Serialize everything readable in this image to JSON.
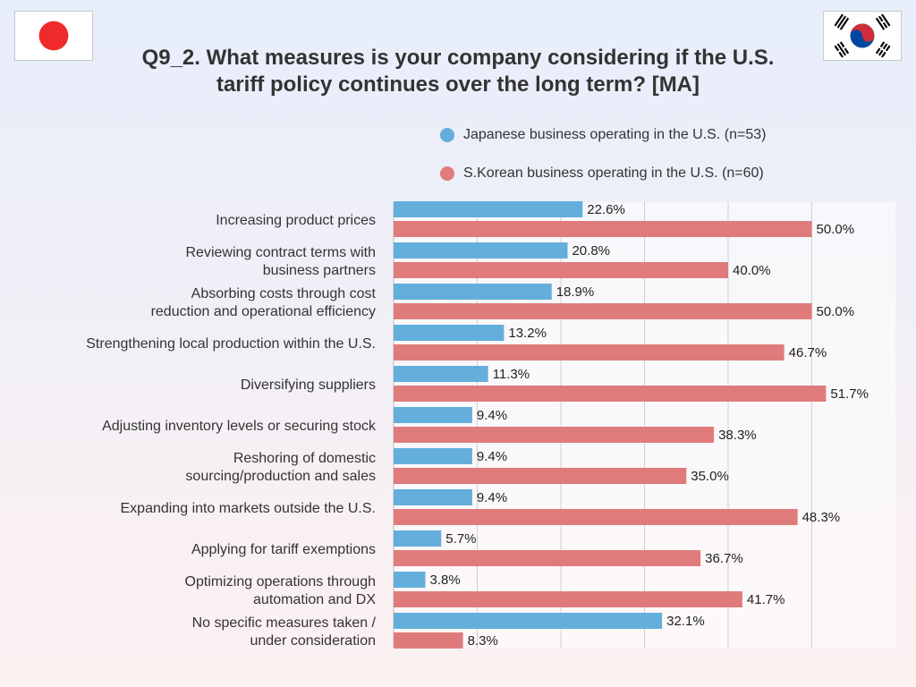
{
  "header": {
    "title_line1": "Q9_2. What measures is your company considering if the U.S.",
    "title_line2": "tariff policy continues over the long term?  [MA]"
  },
  "flags": {
    "left": "japan-flag-icon",
    "right": "south-korea-flag-icon"
  },
  "colors": {
    "japan": "#64aedb",
    "korea": "#e07b7b",
    "japan_flag_red": "#ee2a2a",
    "korea_red": "#cd2e3a",
    "korea_blue": "#0047a0"
  },
  "chart_data": {
    "type": "bar",
    "orientation": "horizontal",
    "title": "Q9_2. What measures is your company considering if the U.S. tariff policy continues over the long term?  [MA]",
    "categories": [
      [
        "Increasing product prices"
      ],
      [
        "Reviewing contract terms with",
        "business partners"
      ],
      [
        "Absorbing costs through cost",
        "reduction and operational efficiency"
      ],
      [
        "Strengthening local production within the U.S."
      ],
      [
        "Diversifying suppliers"
      ],
      [
        "Adjusting inventory levels or securing stock"
      ],
      [
        "Reshoring of domestic",
        "sourcing/production and sales"
      ],
      [
        "Expanding into markets outside the U.S."
      ],
      [
        "Applying for tariff exemptions"
      ],
      [
        "Optimizing operations through",
        "automation and DX"
      ],
      [
        "No specific measures taken /",
        "under consideration"
      ]
    ],
    "series": [
      {
        "name": "Japanese business operating in the U.S. (n=53)",
        "values": [
          22.6,
          20.8,
          18.9,
          13.2,
          11.3,
          9.4,
          9.4,
          9.4,
          5.7,
          3.8,
          32.1
        ],
        "labels": [
          "22.6%",
          "20.8%",
          "18.9%",
          "13.2%",
          "11.3%",
          "9.4%",
          "9.4%",
          "9.4%",
          "5.7%",
          "3.8%",
          "32.1%"
        ]
      },
      {
        "name": "S.Korean business operating in the U.S. (n=60)",
        "values": [
          50.0,
          40.0,
          50.0,
          46.7,
          51.7,
          38.3,
          35.0,
          48.3,
          36.7,
          41.7,
          8.3
        ],
        "labels": [
          "50.0%",
          "40.0%",
          "50.0%",
          "46.7%",
          "51.7%",
          "38.3%",
          "35.0%",
          "48.3%",
          "36.7%",
          "41.7%",
          "8.3%"
        ]
      }
    ],
    "xlim": [
      0,
      60
    ],
    "gridlines": [
      10,
      20,
      30,
      40,
      50
    ],
    "grid": true,
    "legend_position": "top-right"
  }
}
